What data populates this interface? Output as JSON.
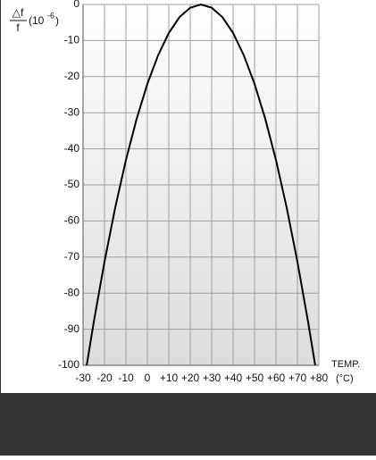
{
  "chart_data": {
    "type": "line",
    "ylabel": {
      "numerator": "△f",
      "denominator": "f",
      "unit": "(10",
      "exponent": "-6",
      "close": ")"
    },
    "xlabel": "TEMP.",
    "xunit": "(°C)",
    "x": [
      -28.3,
      -25,
      -20,
      -15,
      -10,
      -5,
      0,
      5,
      10,
      15,
      20,
      25,
      30,
      35,
      40,
      45,
      50,
      55,
      60,
      65,
      70,
      75,
      78.3
    ],
    "values": [
      -100,
      -88,
      -71.3,
      -56.3,
      -43.1,
      -31.7,
      -22,
      -14.1,
      -7.9,
      -3.5,
      -0.9,
      0,
      -0.9,
      -3.5,
      -7.9,
      -14.1,
      -22,
      -31.7,
      -43.1,
      -56.3,
      -71.3,
      -88,
      -100
    ],
    "color": "#000000",
    "xlim": [
      -30,
      80
    ],
    "xticks": [
      -30,
      -20,
      -10,
      0,
      {
        "value": 10,
        "label": "+10"
      },
      {
        "value": 20,
        "label": "+20"
      },
      {
        "value": 30,
        "label": "+30"
      },
      {
        "value": 40,
        "label": "+40"
      },
      {
        "value": 50,
        "label": "+50"
      },
      {
        "value": 60,
        "label": "+60"
      },
      {
        "value": 70,
        "label": "+70"
      },
      {
        "value": 80,
        "label": "+80"
      }
    ],
    "ylim": [
      -100,
      0
    ],
    "yticks": [
      0,
      -10,
      -20,
      -30,
      -40,
      -50,
      -60,
      -70,
      -80,
      -90,
      -100
    ],
    "grid": true
  }
}
